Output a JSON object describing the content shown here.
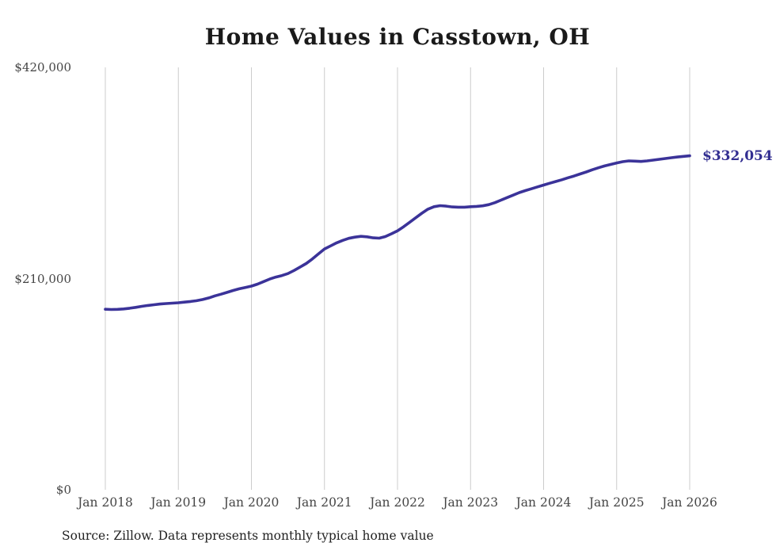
{
  "source_note": "Source: Zillow. Data represents monthly typical home value",
  "chart_data": {
    "type": "line",
    "title": "Home Values in Casstown, OH",
    "xlabel": "",
    "ylabel": "",
    "x_start": "Jan 2018",
    "x_interval": "monthly",
    "x_tick_labels": [
      "Jan 2018",
      "Jan 2019",
      "Jan 2020",
      "Jan 2021",
      "Jan 2022",
      "Jan 2023",
      "Jan 2024",
      "Jan 2025",
      "Jan 2026"
    ],
    "y_tick_labels": [
      "$420,000",
      "$210,000",
      "$0"
    ],
    "y_tick_values": [
      420000,
      210000,
      0
    ],
    "ylim": [
      0,
      420000
    ],
    "grid": "vertical-only",
    "legend": "none",
    "end_label": "$332,054",
    "end_value": 332054,
    "colors": {
      "line": "#3b3399",
      "end_label": "#322e91",
      "grid": "#cccccc",
      "ticks": "#454545",
      "title": "#1a1a1a",
      "background": "#ffffff"
    },
    "series": [
      {
        "name": "Monthly typical home value",
        "values": [
          179500,
          179300,
          179400,
          179800,
          180500,
          181400,
          182400,
          183300,
          184000,
          184700,
          185200,
          185600,
          186000,
          186600,
          187200,
          188000,
          189200,
          190800,
          192800,
          194500,
          196300,
          198200,
          199800,
          201200,
          202500,
          204500,
          207000,
          209500,
          211500,
          213000,
          215000,
          218000,
          221500,
          225000,
          229500,
          234500,
          239500,
          242500,
          245500,
          248000,
          250000,
          251200,
          252000,
          251500,
          250500,
          250200,
          251800,
          254500,
          257500,
          261500,
          266000,
          270500,
          275000,
          279000,
          281500,
          282500,
          282000,
          281200,
          281000,
          281000,
          281500,
          281800,
          282300,
          283500,
          285500,
          288000,
          290500,
          293000,
          295500,
          297500,
          299300,
          301200,
          303000,
          304800,
          306500,
          308300,
          310200,
          312000,
          314000,
          316000,
          318200,
          320200,
          322000,
          323500,
          325000,
          326200,
          327000,
          326800,
          326500,
          327000,
          327800,
          328600,
          329400,
          330200,
          330900,
          331500,
          332054
        ]
      }
    ]
  }
}
